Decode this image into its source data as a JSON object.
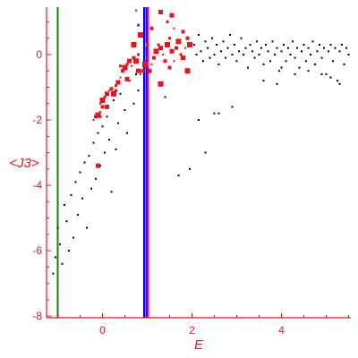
{
  "chart_data": {
    "type": "scatter",
    "title": "",
    "xlabel": "E",
    "ylabel": "<J3>",
    "xlim": [
      -1.25,
      5.55
    ],
    "ylim": [
      -8.05,
      1.45
    ],
    "xticks": [
      0,
      2,
      4
    ],
    "xtick_labels": [
      "0",
      "2",
      "4"
    ],
    "yticks": [
      0,
      -2,
      -4,
      -6,
      -8
    ],
    "ytick_labels": [
      "0",
      "-2",
      "-4",
      "-6",
      "-8"
    ],
    "grid": false,
    "legend": "none",
    "colors": {
      "axis": "#e8141b",
      "red_points": "#e8141b",
      "black_points": "#000000",
      "green_line": "#1a7a1a",
      "blue_line": "#0000ff",
      "magenta_line": "#ff00ff"
    },
    "vertical_lines": [
      {
        "x": -1.0,
        "color": "#1a7a1a"
      },
      {
        "x": 0.93,
        "color": "#0000ff"
      },
      {
        "x": 0.98,
        "color": "#0000ff"
      },
      {
        "x": 1.02,
        "color": "#ff00ff"
      }
    ],
    "series": [
      {
        "marker": "small black dots",
        "points": [
          [
            -1.1,
            -6.7
          ],
          [
            -1.05,
            -6.2
          ],
          [
            -1.0,
            -5.3
          ],
          [
            -0.95,
            -5.8
          ],
          [
            -0.9,
            -6.4
          ],
          [
            -0.85,
            -4.6
          ],
          [
            -0.8,
            -5.1
          ],
          [
            -0.75,
            -6.0
          ],
          [
            -0.7,
            -4.3
          ],
          [
            -0.65,
            -5.6
          ],
          [
            -0.6,
            -3.9
          ],
          [
            -0.55,
            -4.9
          ],
          [
            -0.5,
            -3.6
          ],
          [
            -0.45,
            -4.4
          ],
          [
            -0.4,
            -3.3
          ],
          [
            -0.35,
            -5.3
          ],
          [
            -0.3,
            -3.1
          ],
          [
            -0.25,
            -4.1
          ],
          [
            -0.2,
            -2.7
          ],
          [
            -0.15,
            -3.8
          ],
          [
            -0.1,
            -2.4
          ],
          [
            -0.05,
            -3.4
          ],
          [
            0.0,
            -2.2
          ],
          [
            0.05,
            -3.0
          ],
          [
            0.1,
            -1.9
          ],
          [
            0.15,
            -2.6
          ],
          [
            0.2,
            -4.2
          ],
          [
            0.25,
            -1.4
          ],
          [
            0.3,
            -2.9
          ],
          [
            0.35,
            -2.1
          ],
          [
            0.4,
            -1.2
          ],
          [
            0.5,
            -1.7
          ],
          [
            0.55,
            -2.4
          ],
          [
            0.6,
            -0.8
          ],
          [
            0.7,
            -1.5
          ],
          [
            0.75,
            -0.6
          ],
          [
            0.8,
            -1.1
          ],
          [
            1.4,
            -1.3
          ],
          [
            1.7,
            -3.7
          ],
          [
            1.95,
            -3.5
          ],
          [
            2.15,
            -2.0
          ],
          [
            2.3,
            -3.0
          ],
          [
            2.5,
            -1.8
          ],
          [
            2.6,
            -1.8
          ],
          [
            2.9,
            -1.6
          ],
          [
            3.6,
            -0.8
          ],
          [
            3.9,
            -0.9
          ],
          [
            2.05,
            0.3
          ],
          [
            2.1,
            0.0
          ],
          [
            2.15,
            0.6
          ],
          [
            2.2,
            0.1
          ],
          [
            2.25,
            -0.2
          ],
          [
            2.3,
            0.4
          ],
          [
            2.35,
            0.2
          ],
          [
            2.4,
            -0.1
          ],
          [
            2.45,
            0.5
          ],
          [
            2.5,
            0.0
          ],
          [
            2.55,
            0.3
          ],
          [
            2.6,
            -0.3
          ],
          [
            2.65,
            0.1
          ],
          [
            2.7,
            0.4
          ],
          [
            2.75,
            -0.1
          ],
          [
            2.8,
            0.2
          ],
          [
            2.85,
            0.6
          ],
          [
            2.9,
            0.0
          ],
          [
            2.95,
            0.3
          ],
          [
            3.0,
            -0.2
          ],
          [
            3.05,
            0.1
          ],
          [
            3.1,
            0.5
          ],
          [
            3.15,
            0.0
          ],
          [
            3.2,
            0.2
          ],
          [
            3.25,
            -0.4
          ],
          [
            3.3,
            0.3
          ],
          [
            3.35,
            0.1
          ],
          [
            3.4,
            -0.1
          ],
          [
            3.45,
            0.4
          ],
          [
            3.5,
            0.0
          ],
          [
            3.55,
            0.2
          ],
          [
            3.6,
            -0.3
          ],
          [
            3.65,
            0.3
          ],
          [
            3.7,
            0.1
          ],
          [
            3.75,
            -0.2
          ],
          [
            3.8,
            0.4
          ],
          [
            3.85,
            0.0
          ],
          [
            3.9,
            0.2
          ],
          [
            3.95,
            -0.5
          ],
          [
            4.0,
            0.1
          ],
          [
            4.05,
            0.3
          ],
          [
            4.1,
            -0.2
          ],
          [
            4.15,
            0.2
          ],
          [
            4.2,
            0.0
          ],
          [
            4.25,
            0.4
          ],
          [
            4.3,
            -0.1
          ],
          [
            4.35,
            0.2
          ],
          [
            4.4,
            -0.4
          ],
          [
            4.45,
            0.1
          ],
          [
            4.5,
            0.3
          ],
          [
            4.55,
            -0.2
          ],
          [
            4.6,
            0.2
          ],
          [
            4.65,
            0.0
          ],
          [
            4.7,
            0.4
          ],
          [
            4.75,
            -0.3
          ],
          [
            4.8,
            0.1
          ],
          [
            4.85,
            0.3
          ],
          [
            4.9,
            -0.1
          ],
          [
            4.95,
            0.2
          ],
          [
            5.0,
            -0.6
          ],
          [
            5.05,
            0.1
          ],
          [
            5.1,
            0.3
          ],
          [
            5.15,
            -0.2
          ],
          [
            5.2,
            0.2
          ],
          [
            5.25,
            -0.8
          ],
          [
            5.3,
            0.1
          ],
          [
            5.35,
            0.3
          ],
          [
            5.4,
            -0.3
          ],
          [
            5.45,
            0.2
          ],
          [
            5.5,
            0.0
          ],
          [
            5.3,
            -0.9
          ],
          [
            5.1,
            -0.7
          ],
          [
            4.9,
            -0.6
          ],
          [
            4.6,
            -0.5
          ],
          [
            4.3,
            -0.6
          ],
          [
            4.0,
            -0.4
          ]
        ]
      },
      {
        "marker": "red squares (varying size)",
        "points": [
          [
            -0.2,
            -2.0
          ],
          [
            -0.15,
            -1.9
          ],
          [
            -0.1,
            -1.85
          ],
          [
            -0.05,
            -1.9
          ],
          [
            -0.1,
            -3.4
          ],
          [
            -0.05,
            -1.5
          ],
          [
            0.0,
            -1.6
          ],
          [
            0.0,
            -1.4
          ],
          [
            0.05,
            -1.3
          ],
          [
            0.1,
            -1.2
          ],
          [
            0.15,
            -1.1
          ],
          [
            0.2,
            -1.05
          ],
          [
            0.25,
            -1.2
          ],
          [
            0.3,
            -0.95
          ],
          [
            0.35,
            -0.85
          ],
          [
            0.4,
            -0.7
          ],
          [
            0.45,
            -0.5
          ],
          [
            0.5,
            -0.4
          ],
          [
            0.55,
            -0.3
          ],
          [
            0.6,
            -0.2
          ],
          [
            0.65,
            -0.35
          ],
          [
            0.7,
            -0.1
          ],
          [
            0.75,
            -0.2
          ],
          [
            0.8,
            0.0
          ],
          [
            0.8,
            -0.5
          ],
          [
            0.85,
            -0.6
          ],
          [
            0.9,
            -0.5
          ],
          [
            0.95,
            -0.3
          ],
          [
            1.0,
            -0.1
          ],
          [
            1.05,
            -0.5
          ],
          [
            1.1,
            -0.3
          ],
          [
            1.15,
            -0.1
          ],
          [
            1.2,
            0.1
          ],
          [
            1.25,
            0.3
          ],
          [
            1.3,
            0.2
          ],
          [
            1.35,
            0.0
          ],
          [
            1.4,
            -0.2
          ],
          [
            1.45,
            0.3
          ],
          [
            1.5,
            0.5
          ],
          [
            1.55,
            0.1
          ],
          [
            1.6,
            -0.2
          ],
          [
            1.65,
            0.2
          ],
          [
            1.7,
            0.4
          ],
          [
            1.75,
            0.0
          ],
          [
            1.8,
            -0.1
          ],
          [
            1.85,
            0.2
          ],
          [
            1.9,
            0.5
          ],
          [
            1.95,
            0.3
          ],
          [
            1.45,
            1.0
          ],
          [
            1.55,
            1.2
          ],
          [
            1.6,
            0.8
          ],
          [
            1.1,
            0.8
          ],
          [
            0.85,
            0.6
          ],
          [
            0.8,
            0.9
          ],
          [
            1.3,
            1.3
          ],
          [
            0.75,
            1.35
          ],
          [
            1.8,
            0.7
          ],
          [
            1.3,
            -0.9
          ],
          [
            0.4,
            -0.35
          ],
          [
            0.55,
            -0.75
          ],
          [
            0.9,
            0.55
          ],
          [
            1.5,
            -0.4
          ],
          [
            1.9,
            -0.5
          ],
          [
            0.3,
            -1.1
          ],
          [
            0.1,
            -1.6
          ],
          [
            -0.05,
            -1.75
          ],
          [
            1.0,
            0.3
          ],
          [
            0.7,
            0.3
          ]
        ]
      }
    ]
  }
}
